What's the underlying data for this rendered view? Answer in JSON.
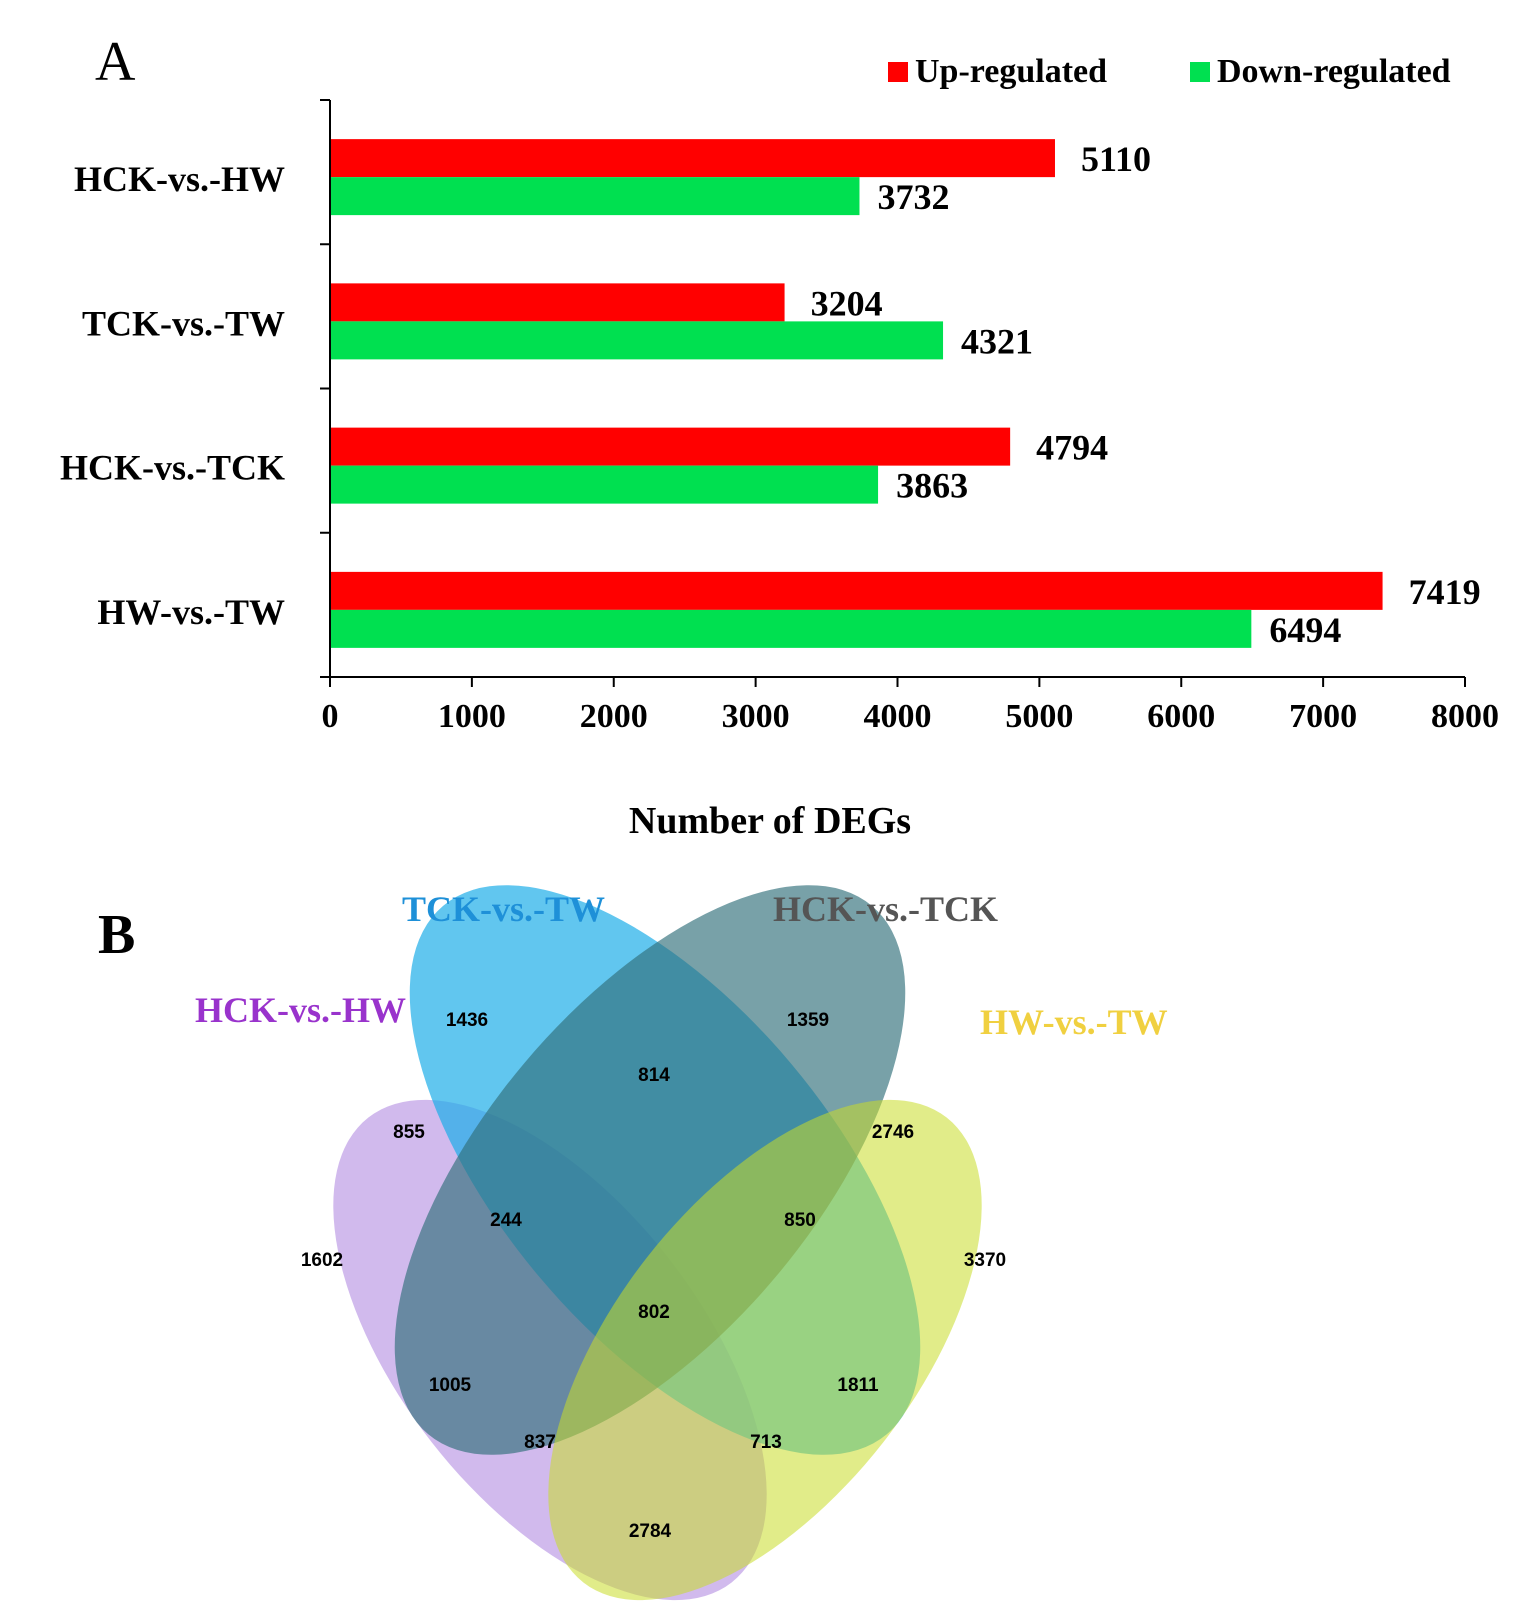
{
  "chart_data": [
    {
      "panel": "A",
      "type": "bar",
      "orientation": "horizontal",
      "categories": [
        "HCK-vs.-HW",
        "TCK-vs.-TW",
        "HCK-vs.-TCK",
        "HW-vs.-TW"
      ],
      "series": [
        {
          "name": "Up-regulated",
          "color": "#ff0000",
          "values": [
            5110,
            3204,
            4794,
            7419
          ]
        },
        {
          "name": "Down-regulated",
          "color": "#00e050",
          "values": [
            3732,
            4321,
            3863,
            6494
          ]
        }
      ],
      "xlabel": "Number of DEGs",
      "ylabel": "",
      "xlim": [
        0,
        8000
      ],
      "xticks": [
        "0",
        "1000",
        "2000",
        "3000",
        "4000",
        "5000",
        "6000",
        "7000",
        "8000"
      ],
      "legend": "top-right",
      "grid": false
    },
    {
      "panel": "B",
      "type": "venn",
      "sets": [
        {
          "name": "HCK-vs.-HW",
          "color": "#9933cc"
        },
        {
          "name": "TCK-vs.-TW",
          "color": "#1e90d8"
        },
        {
          "name": "HCK-vs.-TCK",
          "color": "#555555"
        },
        {
          "name": "HW-vs.-TW",
          "color": "#f0d040"
        }
      ],
      "regions": [
        {
          "sets": [
            "HCK-vs.-HW"
          ],
          "value": 1602
        },
        {
          "sets": [
            "TCK-vs.-TW"
          ],
          "value": 1436
        },
        {
          "sets": [
            "HCK-vs.-TCK"
          ],
          "value": 1359
        },
        {
          "sets": [
            "HW-vs.-TW"
          ],
          "value": 3370
        },
        {
          "sets": [
            "TCK-vs.-TW",
            "HCK-vs.-TCK"
          ],
          "value": 814
        },
        {
          "sets": [
            "HCK-vs.-HW",
            "TCK-vs.-TW"
          ],
          "value": 855
        },
        {
          "sets": [
            "HCK-vs.-TCK",
            "HW-vs.-TW"
          ],
          "value": 2746
        },
        {
          "sets": [
            "HCK-vs.-HW",
            "TCK-vs.-TW",
            "HCK-vs.-TCK"
          ],
          "value": 244
        },
        {
          "sets": [
            "TCK-vs.-TW",
            "HCK-vs.-TCK",
            "HW-vs.-TW"
          ],
          "value": 850
        },
        {
          "sets": [
            "HCK-vs.-HW",
            "TCK-vs.-TW",
            "HCK-vs.-TCK",
            "HW-vs.-TW"
          ],
          "value": 802
        },
        {
          "sets": [
            "HCK-vs.-HW",
            "HCK-vs.-TCK"
          ],
          "value": 1005
        },
        {
          "sets": [
            "TCK-vs.-TW",
            "HW-vs.-TW"
          ],
          "value": 1811
        },
        {
          "sets": [
            "HCK-vs.-HW",
            "HCK-vs.-TCK",
            "HW-vs.-TW"
          ],
          "value": 837
        },
        {
          "sets": [
            "HCK-vs.-HW",
            "TCK-vs.-TW",
            "HW-vs.-TW"
          ],
          "value": 713
        },
        {
          "sets": [
            "HCK-vs.-HW",
            "HW-vs.-TW"
          ],
          "value": 2784
        }
      ]
    }
  ],
  "panel_labels": {
    "a": "A",
    "b": "B"
  }
}
